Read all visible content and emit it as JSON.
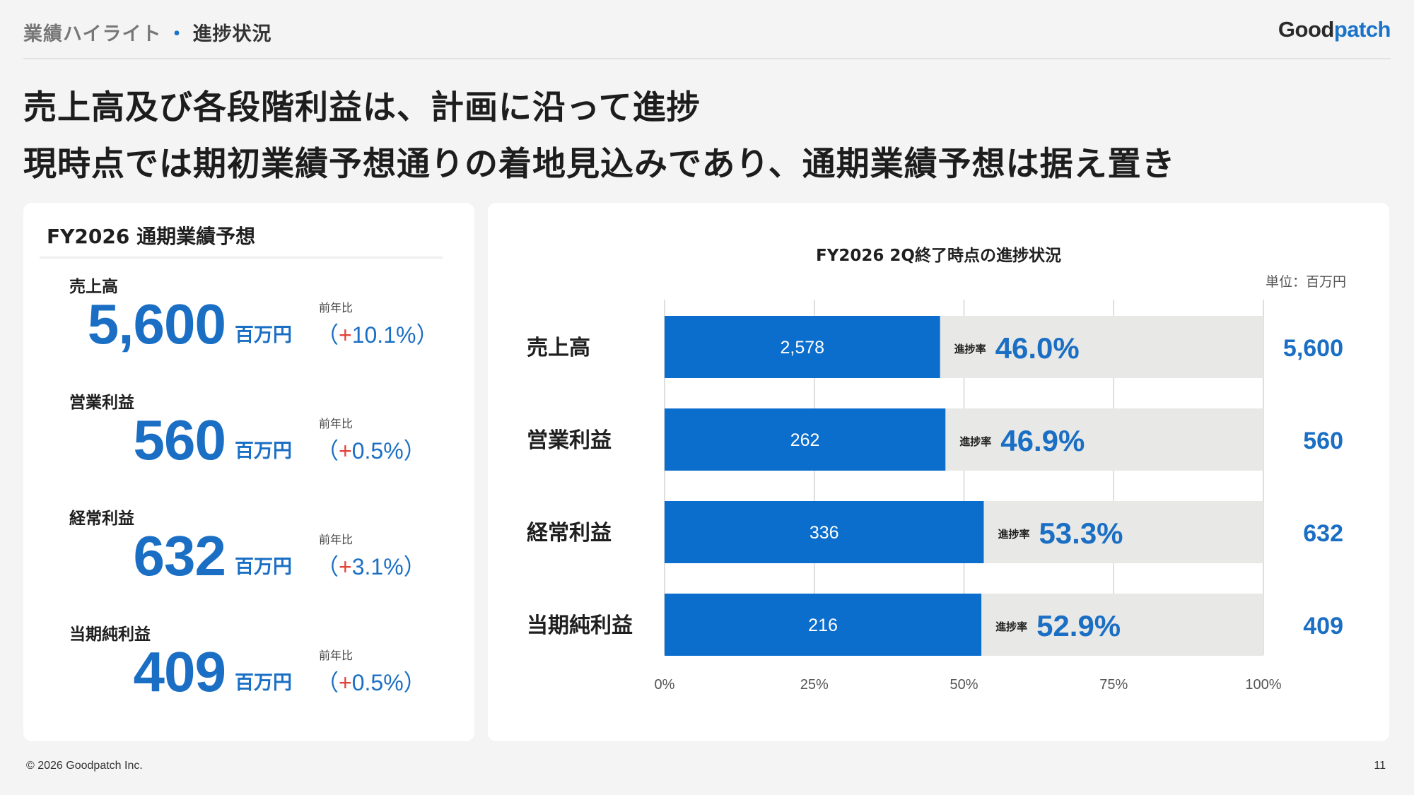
{
  "header": {
    "section": "業績ハイライト",
    "separator": "・",
    "current": "進捗状況",
    "logo_prefix": "Good",
    "logo_accent": "patch"
  },
  "headline": {
    "line1": "売上高及び各段階利益は、計画に沿って進捗",
    "line2": "現時点では期初業績予想通りの着地見込みであり、通期業績予想は据え置き"
  },
  "forecast": {
    "title": "FY2026 通期業績予想",
    "unit": "百万円",
    "yoy_label": "前年比",
    "items": [
      {
        "name": "売上高",
        "value": "5,600",
        "yoy_open": "（",
        "yoy_sign": "+",
        "yoy_value": "10.1%",
        "yoy_close": "）"
      },
      {
        "name": "営業利益",
        "value": "560",
        "yoy_open": "（",
        "yoy_sign": "+",
        "yoy_value": "0.5%",
        "yoy_close": "）"
      },
      {
        "name": "経常利益",
        "value": "632",
        "yoy_open": "（",
        "yoy_sign": "+",
        "yoy_value": "3.1%",
        "yoy_close": "）"
      },
      {
        "name": "当期純利益",
        "value": "409",
        "yoy_open": "（",
        "yoy_sign": "+",
        "yoy_value": "0.5%",
        "yoy_close": "）"
      }
    ]
  },
  "chart_data": {
    "type": "bar",
    "orientation": "horizontal",
    "stacked": "progress-vs-plan",
    "title": "FY2026 2Q終了時点の進捗状況",
    "unit_label": "単位：百万円",
    "progress_label": "進捗率",
    "categories": [
      "売上高",
      "営業利益",
      "経常利益",
      "当期純利益"
    ],
    "actual": [
      2578,
      262,
      336,
      216
    ],
    "actual_labels": [
      "2,578",
      "262",
      "336",
      "216"
    ],
    "progress_pct": [
      46.0,
      46.9,
      53.3,
      52.9
    ],
    "progress_labels": [
      "46.0%",
      "46.9%",
      "53.3%",
      "52.9%"
    ],
    "plan_labels": [
      "5,600",
      "560",
      "632",
      "409"
    ],
    "xlim": [
      0,
      100
    ],
    "xticks": [
      "0%",
      "25%",
      "50%",
      "75%",
      "100%"
    ],
    "grid": true,
    "colors": {
      "actual": "#0b6dcc",
      "remaining": "#e8e8e6",
      "accent_text": "#1a6fc4",
      "grid": "#d4d4d4"
    }
  },
  "footer": {
    "copyright": "© 2026 Goodpatch Inc.",
    "page": "11"
  }
}
